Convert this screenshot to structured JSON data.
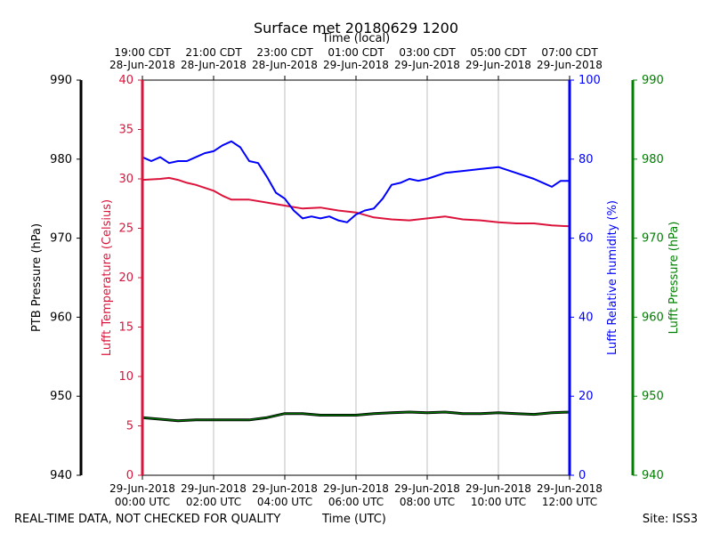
{
  "chart_data": {
    "type": "line",
    "title": "Surface met 20180629 1200",
    "top_axis_label": "Time (local)",
    "top_ticks": [
      {
        "h": 0,
        "line1": "19:00 CDT",
        "line2": "28-Jun-2018"
      },
      {
        "h": 2,
        "line1": "21:00 CDT",
        "line2": "28-Jun-2018"
      },
      {
        "h": 4,
        "line1": "23:00 CDT",
        "line2": "28-Jun-2018"
      },
      {
        "h": 6,
        "line1": "01:00 CDT",
        "line2": "29-Jun-2018"
      },
      {
        "h": 8,
        "line1": "03:00 CDT",
        "line2": "29-Jun-2018"
      },
      {
        "h": 10,
        "line1": "05:00 CDT",
        "line2": "29-Jun-2018"
      },
      {
        "h": 12,
        "line1": "07:00 CDT",
        "line2": "29-Jun-2018"
      }
    ],
    "bottom_axis_label": "Time (UTC)",
    "bottom_ticks": [
      {
        "h": 0,
        "line1": "29-Jun-2018",
        "line2": "00:00 UTC"
      },
      {
        "h": 2,
        "line1": "29-Jun-2018",
        "line2": "02:00 UTC"
      },
      {
        "h": 4,
        "line1": "29-Jun-2018",
        "line2": "04:00 UTC"
      },
      {
        "h": 6,
        "line1": "29-Jun-2018",
        "line2": "06:00 UTC"
      },
      {
        "h": 8,
        "line1": "29-Jun-2018",
        "line2": "08:00 UTC"
      },
      {
        "h": 10,
        "line1": "29-Jun-2018",
        "line2": "10:00 UTC"
      },
      {
        "h": 12,
        "line1": "29-Jun-2018",
        "line2": "12:00 UTC"
      }
    ],
    "xlim": [
      0,
      12
    ],
    "grid": true,
    "axes": [
      {
        "id": "ptb",
        "label": "PTB Pressure (hPa)",
        "color": "#000000",
        "ylim": [
          940,
          990
        ],
        "ticks": [
          940,
          950,
          960,
          970,
          980,
          990
        ]
      },
      {
        "id": "temp",
        "label": "Lufft Temperature (Celsius)",
        "color": "#dc143c",
        "ylim": [
          0,
          40
        ],
        "ticks": [
          0,
          5,
          10,
          15,
          20,
          25,
          30,
          35,
          40
        ]
      },
      {
        "id": "rh",
        "label": "Lufft Relative humidity (%)",
        "color": "#0000ff",
        "ylim": [
          0,
          100
        ],
        "ticks": [
          0,
          20,
          40,
          60,
          80,
          100
        ]
      },
      {
        "id": "lp",
        "label": "Lufft Pressure (hPa)",
        "color": "#008000",
        "ylim": [
          940,
          990
        ],
        "ticks": [
          940,
          950,
          960,
          970,
          980,
          990
        ]
      }
    ],
    "series": [
      {
        "name": "Lufft Temperature",
        "axis": "temp",
        "color": "#dc143c",
        "x": [
          0,
          0.5,
          0.75,
          1.0,
          1.25,
          1.5,
          2.0,
          2.25,
          2.5,
          3.0,
          3.5,
          4.0,
          4.5,
          5.0,
          5.5,
          6.0,
          6.5,
          7.0,
          7.5,
          8.0,
          8.5,
          9.0,
          9.5,
          10.0,
          10.5,
          11.0,
          11.5,
          12.0
        ],
        "values": [
          29.9,
          30.0,
          30.1,
          29.9,
          29.6,
          29.4,
          28.8,
          28.3,
          27.9,
          27.9,
          27.6,
          27.3,
          27.0,
          27.1,
          26.8,
          26.6,
          26.1,
          25.9,
          25.8,
          26.0,
          26.2,
          25.9,
          25.8,
          25.6,
          25.5,
          25.5,
          25.3,
          25.2
        ]
      },
      {
        "name": "Lufft Relative humidity",
        "axis": "rh",
        "color": "#0000ff",
        "x": [
          0,
          0.25,
          0.5,
          0.75,
          1.0,
          1.25,
          1.5,
          1.75,
          2.0,
          2.25,
          2.5,
          2.75,
          3.0,
          3.25,
          3.5,
          3.75,
          4.0,
          4.25,
          4.5,
          4.75,
          5.0,
          5.25,
          5.5,
          5.75,
          6.0,
          6.25,
          6.5,
          6.75,
          7.0,
          7.25,
          7.5,
          7.75,
          8.0,
          8.5,
          9.0,
          9.5,
          10.0,
          10.5,
          11.0,
          11.25,
          11.5,
          11.75,
          12.0
        ],
        "values": [
          80.5,
          79.5,
          80.5,
          79.0,
          79.5,
          79.5,
          80.5,
          81.5,
          82.0,
          83.5,
          84.5,
          83.0,
          79.5,
          79.0,
          75.5,
          71.5,
          70.0,
          67.0,
          65.0,
          65.5,
          65.0,
          65.5,
          64.5,
          64.0,
          66.0,
          67.0,
          67.5,
          70.0,
          73.5,
          74.0,
          75.0,
          74.5,
          75.0,
          76.5,
          77.0,
          77.5,
          78.0,
          76.5,
          75.0,
          74.0,
          73.0,
          74.5,
          74.5
        ]
      },
      {
        "name": "PTB Pressure",
        "axis": "ptb",
        "color": "#000000",
        "x": [
          0,
          0.5,
          1.0,
          1.5,
          2.0,
          2.5,
          3.0,
          3.5,
          4.0,
          4.5,
          5.0,
          5.5,
          6.0,
          6.5,
          7.0,
          7.5,
          8.0,
          8.5,
          9.0,
          9.5,
          10.0,
          10.5,
          11.0,
          11.5,
          12.0
        ],
        "values": [
          947.3,
          947.1,
          946.9,
          947.0,
          947.0,
          947.0,
          947.0,
          947.3,
          947.8,
          947.8,
          947.6,
          947.6,
          947.6,
          947.8,
          947.9,
          948.0,
          947.9,
          948.0,
          947.8,
          947.8,
          947.9,
          947.8,
          947.7,
          947.9,
          948.0
        ]
      },
      {
        "name": "Lufft Pressure",
        "axis": "lp",
        "color": "#008000",
        "x": [
          0,
          0.5,
          1.0,
          1.5,
          2.0,
          2.5,
          3.0,
          3.5,
          4.0,
          4.5,
          5.0,
          5.5,
          6.0,
          6.5,
          7.0,
          7.5,
          8.0,
          8.5,
          9.0,
          9.5,
          10.0,
          10.5,
          11.0,
          11.5,
          12.0
        ],
        "values": [
          947.3,
          947.1,
          946.9,
          947.0,
          947.0,
          947.0,
          947.0,
          947.3,
          947.8,
          947.8,
          947.6,
          947.6,
          947.6,
          947.8,
          947.9,
          948.0,
          947.9,
          948.0,
          947.8,
          947.8,
          947.9,
          947.8,
          947.7,
          947.9,
          948.0
        ]
      }
    ]
  },
  "footer": {
    "disclaimer": "REAL-TIME DATA, NOT CHECKED FOR QUALITY",
    "site": "Site: ISS3"
  }
}
